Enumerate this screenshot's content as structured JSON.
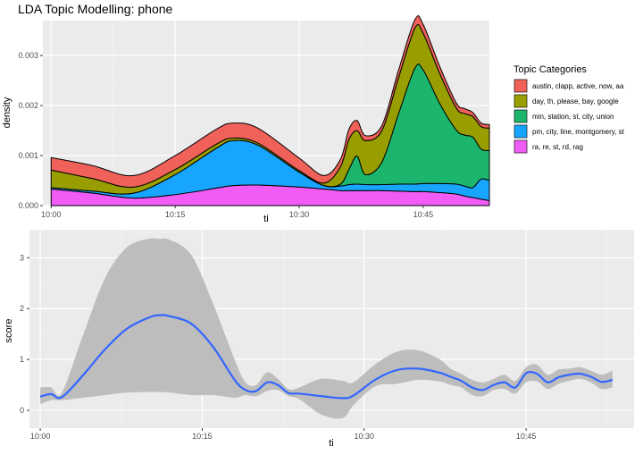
{
  "chart_data": [
    {
      "type": "area",
      "title": "LDA Topic Modelling: phone",
      "xlabel": "ti",
      "ylabel": "density",
      "stacked": true,
      "ylim": [
        0,
        0.0037
      ],
      "xlim": [
        "09:59",
        "10:53"
      ],
      "x_ticks": [
        "10:00",
        "10:15",
        "10:30",
        "10:45"
      ],
      "y_ticks": [
        "0.000",
        "0.001",
        "0.002",
        "0.003"
      ],
      "legend_title": "Topic Categories",
      "legend_position": "right",
      "x": [
        "10:00",
        "10:05",
        "10:10",
        "10:15",
        "10:20",
        "10:22",
        "10:25",
        "10:30",
        "10:33",
        "10:35",
        "10:36",
        "10:37",
        "10:38",
        "10:40",
        "10:42",
        "10:44",
        "10:45",
        "10:47",
        "10:49",
        "10:50",
        "10:51",
        "10:52",
        "10:53"
      ],
      "series": [
        {
          "name": "ra, re, st, rd, rag",
          "color": "#F15BF6",
          "values": [
            0.00033,
            0.00025,
            0.00015,
            0.00022,
            0.00035,
            0.0004,
            0.00041,
            0.00037,
            0.00033,
            0.0003,
            0.0003,
            0.0003,
            0.0003,
            0.0003,
            0.00029,
            0.00028,
            0.00028,
            0.00026,
            0.00023,
            0.00019,
            0.00016,
            0.00013,
            0.0001
          ]
        },
        {
          "name": "pm, city, line, montgomery, st",
          "color": "#17A5FF",
          "values": [
            3e-05,
            4e-05,
            0.0001,
            0.0004,
            0.0008,
            0.0009,
            0.0008,
            0.0003,
            7e-05,
            9e-05,
            0.00012,
            0.00013,
            0.00012,
            0.00012,
            0.00014,
            0.00015,
            0.00016,
            0.00018,
            0.0002,
            0.0002,
            0.0002,
            0.0004,
            0.0004
          ]
        },
        {
          "name": "min, station, st, city, union",
          "color": "#1CB56E",
          "values": [
            0.0,
            0.0,
            0.0,
            0.0,
            0.0,
            0.0,
            0.0,
            0.0,
            0.0,
            4e-05,
            0.0003,
            0.00056,
            0.0002,
            0.00045,
            0.0014,
            0.00232,
            0.00227,
            0.0016,
            0.00108,
            0.00102,
            0.00101,
            0.0006,
            0.0006
          ]
        },
        {
          "name": "day, th, please, bay, google",
          "color": "#999E00",
          "values": [
            0.00035,
            0.00025,
            0.00012,
            0.0001,
            8e-05,
            5e-05,
            4e-05,
            3e-05,
            5e-05,
            0.00035,
            0.0006,
            0.00051,
            0.00068,
            0.00063,
            0.00072,
            0.0008,
            0.00073,
            0.0006,
            0.00044,
            0.00043,
            0.00041,
            0.00045,
            0.00045
          ]
        },
        {
          "name": "austin, clapp, active, now, aa",
          "color": "#F0615A",
          "values": [
            0.00025,
            0.00026,
            0.00023,
            0.00028,
            0.0003,
            0.0003,
            0.0003,
            0.00025,
            0.00015,
            0.00015,
            0.0002,
            0.0002,
            0.0001,
            0.0001,
            0.00015,
            0.00017,
            0.00018,
            0.00014,
            0.0001,
            0.0001,
            8e-05,
            7e-05,
            7e-05
          ]
        }
      ]
    },
    {
      "type": "line",
      "xlabel": "ti",
      "ylabel": "score",
      "ylim": [
        -0.35,
        3.55
      ],
      "xlim": [
        "09:59",
        "10:55"
      ],
      "x_ticks": [
        "10:00",
        "10:15",
        "10:30",
        "10:45"
      ],
      "y_ticks": [
        "0",
        "1",
        "2",
        "3"
      ],
      "grid": true,
      "line_color": "#3366FF",
      "ribbon_color": "#BDBDBD",
      "x": [
        "10:00",
        "10:01",
        "10:02",
        "10:04",
        "10:06",
        "10:08",
        "10:10",
        "10:11",
        "10:12",
        "10:14",
        "10:16",
        "10:18",
        "10:19",
        "10:20",
        "10:21",
        "10:22",
        "10:23",
        "10:24",
        "10:26",
        "10:28",
        "10:29",
        "10:31",
        "10:33",
        "10:35",
        "10:37",
        "10:38",
        "10:39",
        "10:40",
        "10:41",
        "10:42",
        "10:43",
        "10:44",
        "10:45",
        "10:46",
        "10:47",
        "10:48",
        "10:49",
        "10:50",
        "10:51",
        "10:52",
        "10:53"
      ],
      "smooth": [
        0.27,
        0.32,
        0.26,
        0.7,
        1.2,
        1.6,
        1.82,
        1.87,
        1.85,
        1.7,
        1.25,
        0.6,
        0.4,
        0.38,
        0.55,
        0.5,
        0.34,
        0.33,
        0.28,
        0.24,
        0.29,
        0.6,
        0.79,
        0.82,
        0.74,
        0.66,
        0.58,
        0.45,
        0.4,
        0.5,
        0.55,
        0.45,
        0.73,
        0.72,
        0.55,
        0.65,
        0.7,
        0.72,
        0.66,
        0.56,
        0.6
      ],
      "lower": [
        0.12,
        0.2,
        0.2,
        0.25,
        0.3,
        0.35,
        0.36,
        0.36,
        0.35,
        0.3,
        0.3,
        0.25,
        0.3,
        0.28,
        0.38,
        0.4,
        0.28,
        0.22,
        -0.08,
        -0.15,
        0.1,
        0.47,
        0.52,
        0.6,
        0.57,
        0.5,
        0.45,
        0.3,
        0.28,
        0.4,
        0.42,
        0.33,
        0.55,
        0.57,
        0.42,
        0.52,
        0.58,
        0.62,
        0.55,
        0.42,
        0.45
      ],
      "upper": [
        0.45,
        0.45,
        0.35,
        1.5,
        2.6,
        3.2,
        3.37,
        3.37,
        3.35,
        3.05,
        2.1,
        1.0,
        0.55,
        0.5,
        0.75,
        0.62,
        0.42,
        0.45,
        0.62,
        0.58,
        0.55,
        0.9,
        1.15,
        1.18,
        1.0,
        0.82,
        0.72,
        0.6,
        0.55,
        0.62,
        0.7,
        0.58,
        0.85,
        0.9,
        0.7,
        0.8,
        0.82,
        0.85,
        0.78,
        0.7,
        0.78
      ]
    }
  ]
}
